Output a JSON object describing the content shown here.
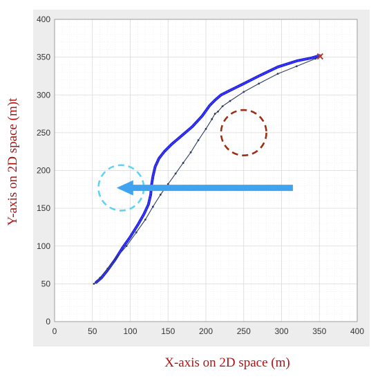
{
  "chart_data": {
    "type": "line",
    "xlabel": "X-axis on 2D space (m)",
    "ylabel": "Y-axis on 2D space (m)t",
    "xlim": [
      0,
      400
    ],
    "ylim": [
      0,
      400
    ],
    "xticks": [
      "0",
      "50",
      "100",
      "150",
      "200",
      "250",
      "300",
      "350",
      "400"
    ],
    "yticks": [
      "0",
      "50",
      "100",
      "150",
      "200",
      "250",
      "300",
      "350",
      "400"
    ],
    "grid": true,
    "series": [
      {
        "style": "thick-blue-dotted",
        "color": "#1f1fd6",
        "x": [
          55,
          62,
          70,
          80,
          90,
          100,
          110,
          118,
          124,
          127,
          128,
          130,
          133,
          138,
          145,
          155,
          168,
          182,
          195,
          205,
          212,
          220,
          232,
          250,
          270,
          295,
          320,
          340,
          350
        ],
        "y": [
          52,
          58,
          68,
          82,
          98,
          112,
          128,
          142,
          155,
          168,
          180,
          192,
          205,
          216,
          225,
          235,
          246,
          258,
          272,
          286,
          293,
          300,
          306,
          315,
          325,
          337,
          345,
          349,
          352
        ]
      },
      {
        "style": "thin-dark-dotted",
        "color": "#2d3a63",
        "x": [
          52,
          60,
          70,
          82,
          95,
          108,
          120,
          130,
          140,
          150,
          160,
          170,
          180,
          190,
          200,
          208,
          212,
          216,
          222,
          232,
          250,
          270,
          295,
          320,
          345,
          352
        ],
        "y": [
          50,
          58,
          70,
          85,
          100,
          118,
          135,
          152,
          168,
          182,
          196,
          210,
          224,
          240,
          255,
          268,
          275,
          278,
          285,
          292,
          304,
          315,
          328,
          338,
          348,
          352
        ]
      }
    ],
    "markers": [
      {
        "shape": "dashed-circle",
        "color": "#9b2f14",
        "cx": 250,
        "cy": 250,
        "r": 30
      },
      {
        "shape": "dashed-circle",
        "color": "#5fd3f3",
        "cx": 88,
        "cy": 177,
        "r": 30
      },
      {
        "shape": "arrow",
        "color": "#3fa3f0",
        "from": [
          315,
          177
        ],
        "to": [
          82,
          177
        ]
      },
      {
        "shape": "cross",
        "color": "#c0392b",
        "x": 351,
        "y": 351
      }
    ]
  }
}
